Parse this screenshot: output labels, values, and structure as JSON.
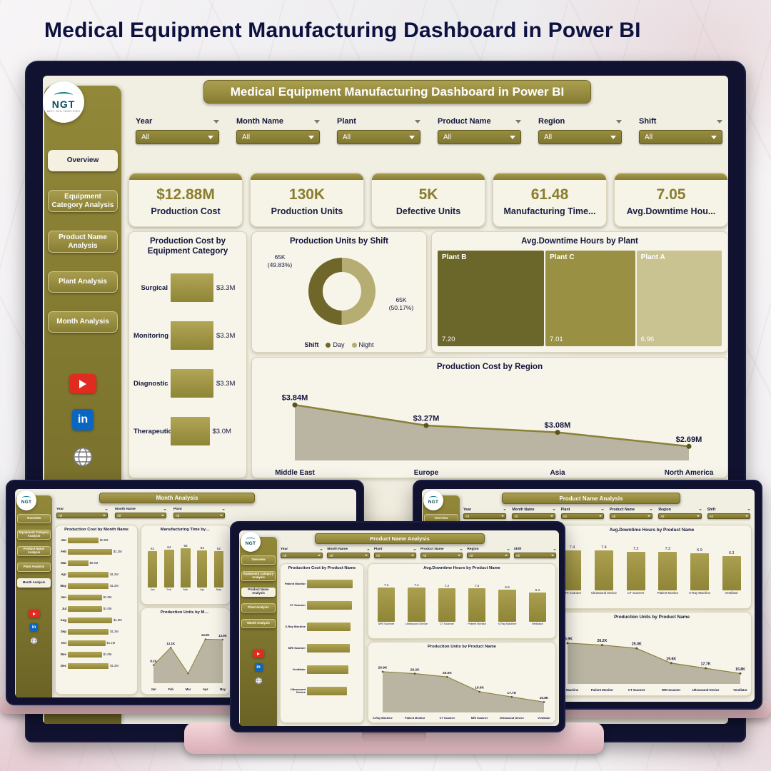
{
  "page": {
    "title": "Medical Equipment Manufacturing Dashboard in Power BI"
  },
  "colors": {
    "navy": "#14173c",
    "olive": "#8a8136",
    "olive_dark": "#6b6325",
    "cream": "#f1eee2",
    "pink": "#eccad0",
    "bar": "#a09544",
    "donut_day": "#6f672a",
    "donut_night": "#b5ad72",
    "treemap": [
      "#6b662a",
      "#999043",
      "#c9c391"
    ],
    "area_line": "#8a8139",
    "area_fill": "#b3ae9b"
  },
  "logo": {
    "brand": "NGT",
    "tagline": "NEXT GEN TEMPLATES"
  },
  "social": {
    "items": [
      {
        "name": "YouTube"
      },
      {
        "name": "LinkedIn",
        "label": "in"
      },
      {
        "name": "Website"
      }
    ]
  },
  "nav_items": [
    "Overview",
    "Equipment Category Analysis",
    "Product Name Analysis",
    "Plant Analysis",
    "Month Analysis"
  ],
  "filter_labels": [
    "Year",
    "Month Name",
    "Plant",
    "Product Name",
    "Region",
    "Shift"
  ],
  "filter_value": "All",
  "overview": {
    "title": "Medical Equipment Manufacturing Dashboard in Power BI",
    "active_nav": 0,
    "kpis": [
      {
        "value": "$12.88M",
        "label": "Production Cost"
      },
      {
        "value": "130K",
        "label": "Production Units"
      },
      {
        "value": "5K",
        "label": "Defective Units"
      },
      {
        "value": "61.48",
        "label": "Manufacturing Time..."
      },
      {
        "value": "7.05",
        "label": "Avg.Downtime Hou..."
      }
    ],
    "equipment_chart": {
      "type": "bar",
      "title": "Production Cost by Equipment Category",
      "categories": [
        "Surgical",
        "Monitoring",
        "Diagnostic",
        "Therapeutic"
      ],
      "values": [
        3.3,
        3.3,
        3.3,
        3.0
      ],
      "labels": [
        "$3.3M",
        "$3.3M",
        "$3.3M",
        "$3.0M"
      ]
    },
    "shift_chart": {
      "type": "donut",
      "title": "Production Units by Shift",
      "legend_title": "Shift",
      "slices": [
        {
          "name": "Day",
          "label": "65K",
          "pct_label": "(49.83%)",
          "pct": 49.83
        },
        {
          "name": "Night",
          "label": "65K",
          "pct_label": "(50.17%)",
          "pct": 50.17
        }
      ]
    },
    "plant_chart": {
      "type": "treemap",
      "title": "Avg.Downtime Hours by Plant",
      "blocks": [
        {
          "name": "Plant B",
          "value": 7.2,
          "label": "7.20"
        },
        {
          "name": "Plant C",
          "value": 7.01,
          "label": "7.01"
        },
        {
          "name": "Plant A",
          "value": 6.96,
          "label": "6.96"
        }
      ]
    },
    "region_chart": {
      "type": "area",
      "title": "Production Cost by Region",
      "categories": [
        "Middle East",
        "Europe",
        "Asia",
        "North America"
      ],
      "values": [
        3.84,
        3.27,
        3.08,
        2.69
      ],
      "labels": [
        "$3.84M",
        "$3.27M",
        "$3.08M",
        "$2.69M"
      ],
      "ymin": 2.3,
      "ymax": 4.2
    }
  },
  "month_page": {
    "title": "Month Analysis",
    "active_nav": 4,
    "filters": [
      "Year",
      "Month Name",
      "Plant"
    ],
    "cost_by_month": {
      "type": "bar",
      "title": "Production Cost by Month Name",
      "categories": [
        "Jan",
        "Feb",
        "Mar",
        "Apr",
        "May",
        "Jun",
        "Jul",
        "Aug",
        "Sep",
        "Oct",
        "Nov",
        "Dec"
      ],
      "values": [
        0.9,
        1.3,
        0.6,
        1.2,
        1.2,
        1.0,
        1.0,
        1.3,
        1.2,
        1.1,
        1.0,
        1.2
      ],
      "labels": [
        "$0.9M",
        "$1.3M",
        "$0.6M",
        "$1.2M",
        "$1.2M",
        "$1.0M",
        "$1.0M",
        "$1.3M",
        "$1.2M",
        "$1.1M",
        "$1.0M",
        "$1.2M"
      ]
    },
    "mfg_time": {
      "type": "column",
      "title": "Manufacturing Time by Month Name",
      "categories": [
        "Jan",
        "Feb",
        "Mar",
        "Apr",
        "May"
      ],
      "values": [
        61,
        64,
        66,
        63,
        62
      ],
      "labels": [
        "61",
        "64",
        "66",
        "63",
        "62"
      ],
      "ymax": 70
    },
    "units_by_month": {
      "type": "area",
      "title": "Production Units by Month Name",
      "categories": [
        "Jan",
        "Feb",
        "Mar",
        "Apr",
        "May"
      ],
      "values": [
        8.1,
        12.1,
        6.2,
        14.0,
        13.9
      ],
      "labels": [
        "8.1K",
        "12.1K",
        "",
        "14.0K",
        "13.9K"
      ],
      "ymin": 4,
      "ymax": 16
    }
  },
  "product_page": {
    "title": "Product Name Analysis",
    "active_nav": 2,
    "cost_by_product": {
      "type": "bar",
      "title": "Production Cost by Product Name",
      "categories": [
        "Patient Monitor",
        "CT Scanner",
        "X-Ray Machine",
        "MRI Scanner",
        "Ventilator",
        "Ultrasound Device"
      ],
      "values": [
        2.3,
        2.25,
        2.2,
        2.15,
        2.1,
        2.0
      ],
      "labels": [
        "",
        "",
        "",
        "",
        "",
        ""
      ]
    },
    "downtime_by_product": {
      "type": "column",
      "title": "Avg.Downtime Hours by Product Name",
      "categories": [
        "MRI Scanner",
        "Ultrasound Device",
        "CT Scanner",
        "Patient Monitor",
        "X-Ray Machine",
        "Ventilator"
      ],
      "values": [
        7.4,
        7.4,
        7.2,
        7.2,
        6.9,
        6.3
      ],
      "labels": [
        "7.4",
        "7.4",
        "7.2",
        "7.2",
        "6.9",
        "6.3"
      ],
      "ymax": 8
    },
    "units_by_product": {
      "type": "area",
      "title": "Production Units by Product Name",
      "categories": [
        "X-Ray Machine",
        "Patient Monitor",
        "CT Scanner",
        "MRI Scanner",
        "Ultrasound Device",
        "Ventilator"
      ],
      "values": [
        26.9,
        26.2,
        25.0,
        19.6,
        17.7,
        15.8
      ],
      "labels": [
        "26.9K",
        "26.2K",
        "25.0K",
        "19.6K",
        "17.7K",
        "15.8K"
      ],
      "ymin": 12,
      "ymax": 30
    }
  }
}
